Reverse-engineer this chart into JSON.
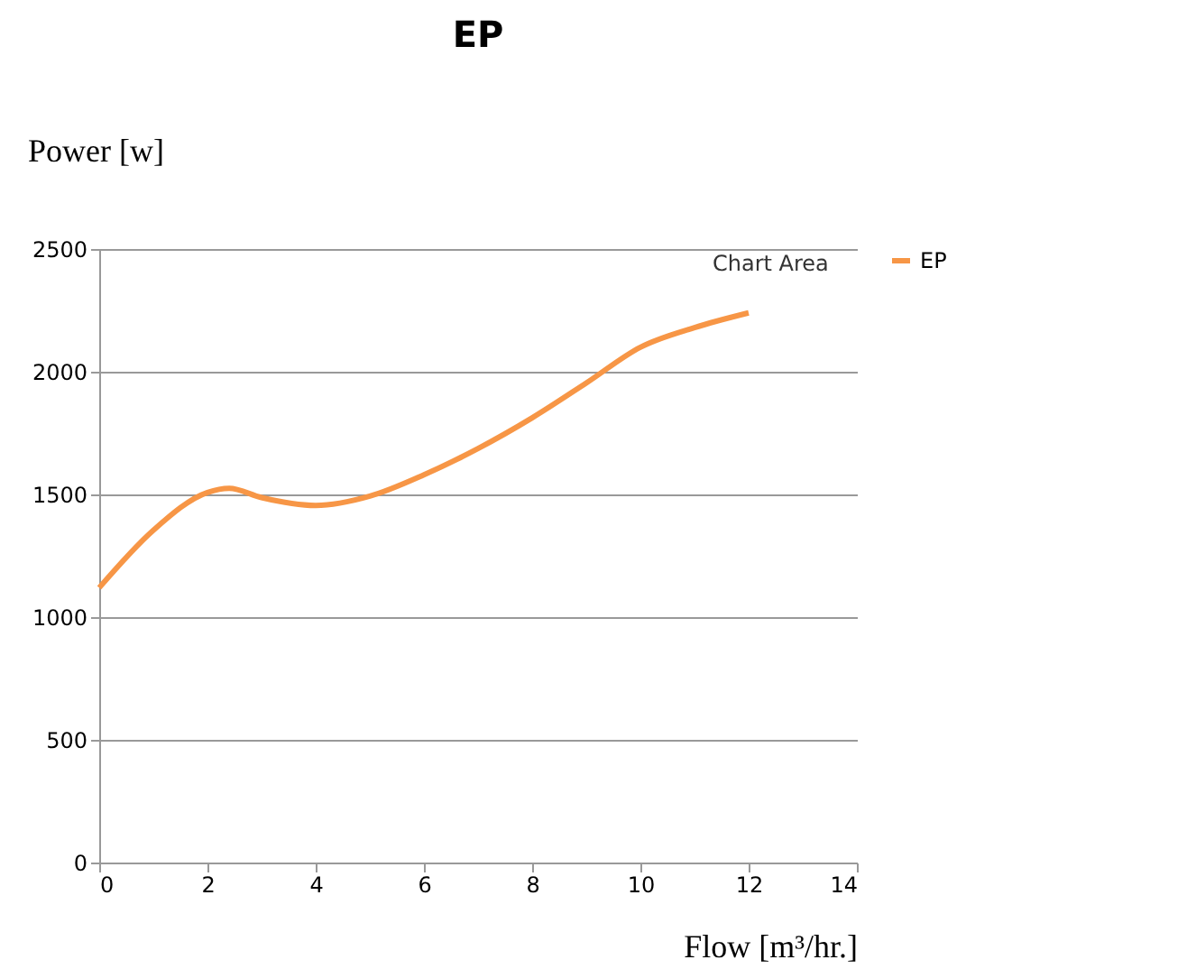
{
  "chart_data": {
    "type": "line",
    "title": "EP",
    "xlabel": "Flow [m³/hr.]",
    "ylabel": "Power [w]",
    "annotations": [
      "Chart Area"
    ],
    "x": [
      0,
      1,
      2,
      2.4,
      3,
      4,
      5,
      6,
      7,
      8,
      9,
      10,
      11,
      12
    ],
    "series": [
      {
        "name": "EP",
        "color": "#f79646",
        "values": [
          1120,
          1354,
          1508,
          1525,
          1487,
          1455,
          1493,
          1580,
          1687,
          1812,
          1954,
          2100,
          2180,
          2240
        ]
      }
    ],
    "xlim": [
      0,
      14
    ],
    "xticks": [
      0,
      2,
      4,
      6,
      8,
      10,
      12,
      14
    ],
    "ylim": [
      0,
      2500
    ],
    "yticks": [
      0,
      500,
      1000,
      1500,
      2000,
      2500
    ],
    "grid": "y",
    "legend": "right",
    "marker": "none",
    "line_style": "solid"
  }
}
